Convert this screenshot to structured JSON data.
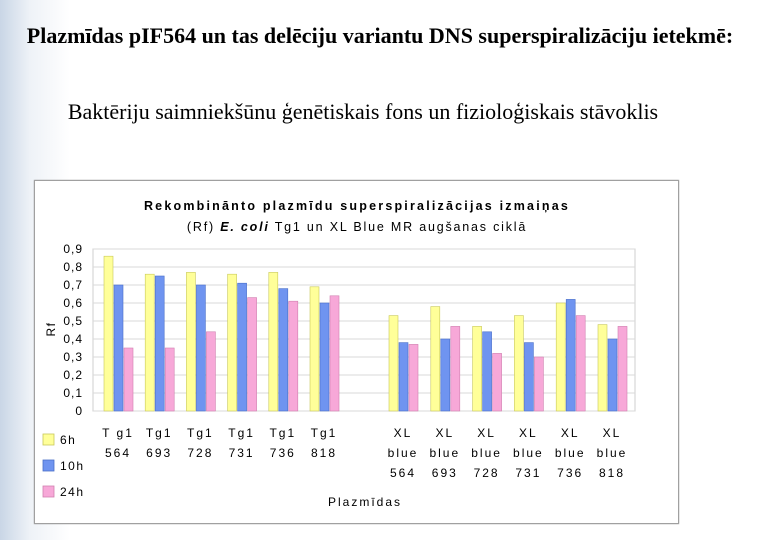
{
  "slide": {
    "title": "Plazmīdas pIF564 un tas delēciju variantu DNS superspiralizāciju ietekmē:",
    "subtitle": "Baktēriju saimniekšūnu ģenētiskais fons un fizioloģiskais stāvoklis"
  },
  "chart_data": {
    "type": "bar",
    "title_line1": "Rekombinānto plazmīdu superspiralizācijas izmaiņas",
    "title_line2_prefix": "(Rf)",
    "title_line2_italic": "E. coli",
    "title_line2_suffix": "Tg1 un XL Blue MR augšanas ciklā",
    "ylabel": "Rf",
    "xlabel": "Plazmīdas",
    "ylim": [
      0,
      0.9
    ],
    "yticks": [
      "0,9",
      "0,8",
      "0,7",
      "0,6",
      "0,5",
      "0,4",
      "0,3",
      "0,2",
      "0,1",
      "0"
    ],
    "grid": true,
    "legend_position": "bottom-left",
    "categories": [
      [
        "T g1",
        "564"
      ],
      [
        "Tg1",
        "693"
      ],
      [
        "Tg1",
        "728"
      ],
      [
        "Tg1",
        "731"
      ],
      [
        "Tg1",
        "736"
      ],
      [
        "Tg1",
        "818"
      ],
      [
        "XL",
        "blue",
        "564"
      ],
      [
        "XL",
        "blue",
        "693"
      ],
      [
        "XL",
        "blue",
        "728"
      ],
      [
        "XL",
        "blue",
        "731"
      ],
      [
        "XL",
        "blue",
        "736"
      ],
      [
        "XL",
        "blue",
        "818"
      ]
    ],
    "series": [
      {
        "name": "6h",
        "color": "#ffff99",
        "stroke": "#c8c85a",
        "values": [
          0.86,
          0.76,
          0.77,
          0.76,
          0.77,
          0.69,
          0.53,
          0.58,
          0.47,
          0.53,
          0.6,
          0.48
        ]
      },
      {
        "name": "10h",
        "color": "#6f94f0",
        "stroke": "#4a6fc8",
        "values": [
          0.7,
          0.75,
          0.7,
          0.71,
          0.68,
          0.6,
          0.38,
          0.4,
          0.44,
          0.38,
          0.62,
          0.4
        ]
      },
      {
        "name": "24h",
        "color": "#f7a8d8",
        "stroke": "#d07fb0",
        "values": [
          0.35,
          0.35,
          0.44,
          0.63,
          0.61,
          0.64,
          0.37,
          0.47,
          0.32,
          0.3,
          0.53,
          0.47
        ]
      }
    ]
  }
}
